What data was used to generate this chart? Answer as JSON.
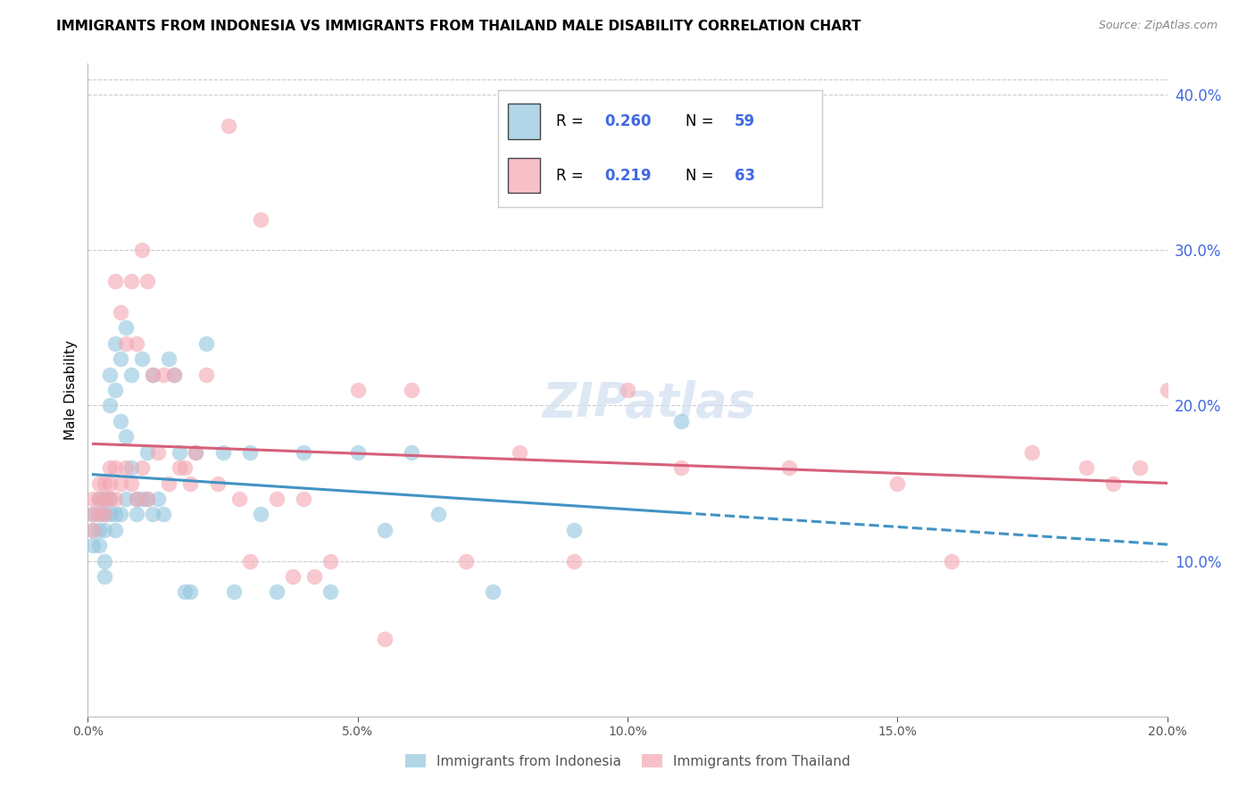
{
  "title": "IMMIGRANTS FROM INDONESIA VS IMMIGRANTS FROM THAILAND MALE DISABILITY CORRELATION CHART",
  "source": "Source: ZipAtlas.com",
  "ylabel": "Male Disability",
  "xlim": [
    0.0,
    0.2
  ],
  "ylim": [
    0.0,
    0.42
  ],
  "xticks": [
    0.0,
    0.05,
    0.1,
    0.15,
    0.2
  ],
  "yticks_right": [
    0.1,
    0.2,
    0.3,
    0.4
  ],
  "series1_label": "Immigrants from Indonesia",
  "series1_R": "0.260",
  "series1_N": "59",
  "series1_color": "#92c5de",
  "series2_label": "Immigrants from Thailand",
  "series2_R": "0.219",
  "series2_N": "63",
  "series2_color": "#f4a6b2",
  "trend1_color": "#4393c3",
  "trend2_color": "#d6607a",
  "background_color": "#ffffff",
  "grid_color": "#cccccc",
  "right_axis_color": "#4169e1",
  "title_fontsize": 11,
  "axis_label_fontsize": 11,
  "tick_fontsize": 10,
  "indonesia_x": [
    0.001,
    0.001,
    0.001,
    0.002,
    0.002,
    0.002,
    0.002,
    0.003,
    0.003,
    0.003,
    0.003,
    0.003,
    0.004,
    0.004,
    0.004,
    0.004,
    0.005,
    0.005,
    0.005,
    0.005,
    0.006,
    0.006,
    0.006,
    0.007,
    0.007,
    0.007,
    0.008,
    0.008,
    0.009,
    0.009,
    0.01,
    0.01,
    0.011,
    0.011,
    0.012,
    0.012,
    0.013,
    0.014,
    0.015,
    0.016,
    0.017,
    0.018,
    0.019,
    0.02,
    0.022,
    0.025,
    0.027,
    0.03,
    0.032,
    0.035,
    0.04,
    0.045,
    0.05,
    0.055,
    0.06,
    0.065,
    0.075,
    0.09,
    0.11
  ],
  "indonesia_y": [
    0.13,
    0.12,
    0.11,
    0.14,
    0.13,
    0.12,
    0.11,
    0.14,
    0.13,
    0.12,
    0.1,
    0.09,
    0.22,
    0.2,
    0.14,
    0.13,
    0.24,
    0.21,
    0.13,
    0.12,
    0.23,
    0.19,
    0.13,
    0.25,
    0.18,
    0.14,
    0.22,
    0.16,
    0.14,
    0.13,
    0.23,
    0.14,
    0.17,
    0.14,
    0.13,
    0.22,
    0.14,
    0.13,
    0.23,
    0.22,
    0.17,
    0.08,
    0.08,
    0.17,
    0.24,
    0.17,
    0.08,
    0.17,
    0.13,
    0.08,
    0.17,
    0.08,
    0.17,
    0.12,
    0.17,
    0.13,
    0.08,
    0.12,
    0.19
  ],
  "thailand_x": [
    0.001,
    0.001,
    0.001,
    0.002,
    0.002,
    0.002,
    0.003,
    0.003,
    0.003,
    0.004,
    0.004,
    0.004,
    0.005,
    0.005,
    0.005,
    0.006,
    0.006,
    0.007,
    0.007,
    0.008,
    0.008,
    0.009,
    0.009,
    0.01,
    0.01,
    0.011,
    0.011,
    0.012,
    0.013,
    0.014,
    0.015,
    0.016,
    0.017,
    0.018,
    0.019,
    0.02,
    0.022,
    0.024,
    0.026,
    0.028,
    0.03,
    0.032,
    0.035,
    0.038,
    0.04,
    0.042,
    0.045,
    0.05,
    0.055,
    0.06,
    0.07,
    0.08,
    0.09,
    0.1,
    0.11,
    0.13,
    0.15,
    0.16,
    0.175,
    0.185,
    0.19,
    0.195,
    0.2
  ],
  "thailand_y": [
    0.14,
    0.13,
    0.12,
    0.15,
    0.14,
    0.13,
    0.15,
    0.14,
    0.13,
    0.16,
    0.15,
    0.14,
    0.28,
    0.16,
    0.14,
    0.26,
    0.15,
    0.24,
    0.16,
    0.28,
    0.15,
    0.24,
    0.14,
    0.3,
    0.16,
    0.28,
    0.14,
    0.22,
    0.17,
    0.22,
    0.15,
    0.22,
    0.16,
    0.16,
    0.15,
    0.17,
    0.22,
    0.15,
    0.38,
    0.14,
    0.1,
    0.32,
    0.14,
    0.09,
    0.14,
    0.09,
    0.1,
    0.21,
    0.05,
    0.21,
    0.1,
    0.17,
    0.1,
    0.21,
    0.16,
    0.16,
    0.15,
    0.1,
    0.17,
    0.16,
    0.15,
    0.16,
    0.21
  ]
}
